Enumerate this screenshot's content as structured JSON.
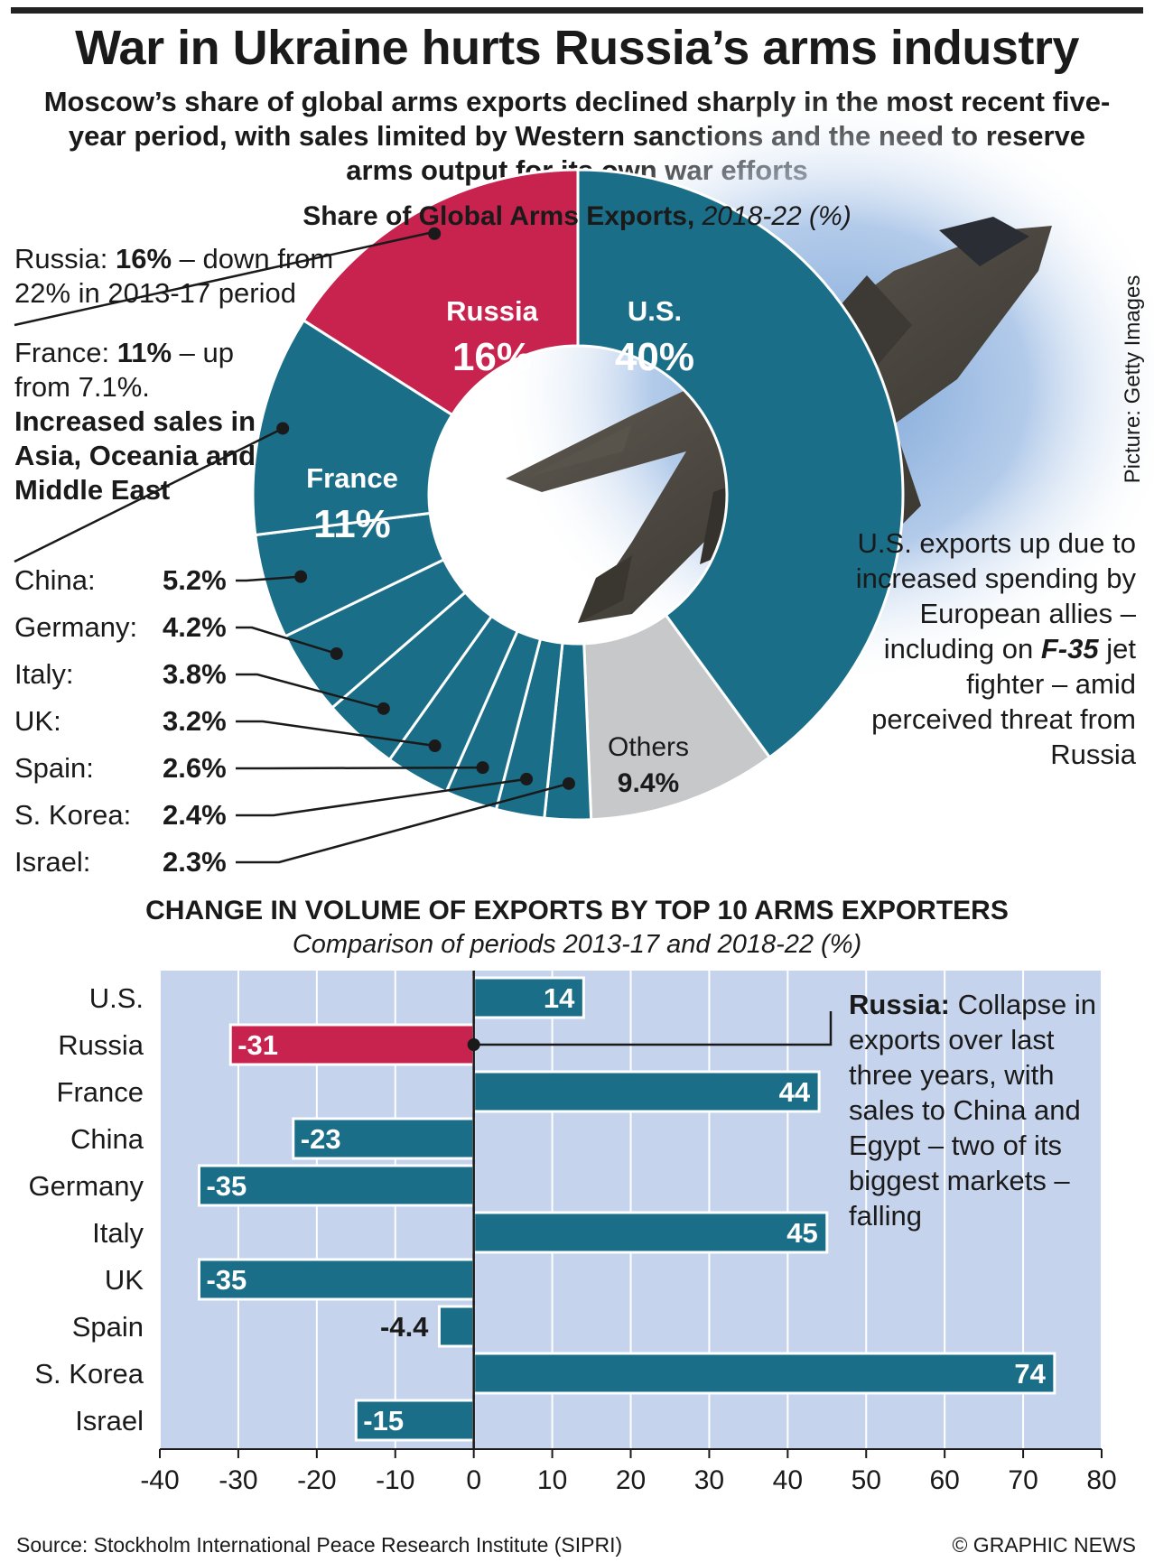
{
  "title": "War in Ukraine hurts Russia’s arms industry",
  "subtitle": "Moscow’s share of global arms exports declined sharply in the most recent five-year period, with sales limited by Western sanctions and the need to reserve arms output for its own war efforts",
  "picture_credit": "Picture: Getty Images",
  "share_section": {
    "title_bold": "Share of Global Arms Exports,",
    "title_italic": "2018-22 (%)"
  },
  "notes": {
    "russia_pre": "Russia: ",
    "russia_bold": "16%",
    "russia_post": " – down from 22% in 2013-17 period",
    "france_pre": "France: ",
    "france_bold": "11%",
    "france_post": " – up from 7.1%.",
    "france_bold2": "Increased sales in Asia, Oceania and Middle East",
    "us_text": "U.S. exports up due to increased spending by European allies – including on",
    "us_bold": "F-35",
    "us_text2": "jet fighter – amid perceived threat from Russia",
    "russia_bar_bold": "Russia:",
    "russia_bar_text": "Collapse in exports over last three years, with sales to China and Egypt – two of its biggest markets – falling"
  },
  "chart_data": [
    {
      "type": "pie",
      "title": "Share of Global Arms Exports, 2018-22 (%)",
      "slices": [
        {
          "label": "U.S.",
          "display": "U.S.",
          "value": 40,
          "value_label": "40%",
          "color": "#1b6e88"
        },
        {
          "label": "Others",
          "display": "Others",
          "value": 9.4,
          "value_label": "9.4%",
          "color": "#c7c8ca"
        },
        {
          "label": "Israel",
          "display": "Israel:",
          "value": 2.3,
          "value_label": "2.3%",
          "color": "#1b6e88"
        },
        {
          "label": "S. Korea",
          "display": "S. Korea:",
          "value": 2.4,
          "value_label": "2.4%",
          "color": "#1b6e88"
        },
        {
          "label": "Spain",
          "display": "Spain:",
          "value": 2.6,
          "value_label": "2.6%",
          "color": "#1b6e88"
        },
        {
          "label": "UK",
          "display": "UK:",
          "value": 3.2,
          "value_label": "3.2%",
          "color": "#1b6e88"
        },
        {
          "label": "Italy",
          "display": "Italy:",
          "value": 3.8,
          "value_label": "3.8%",
          "color": "#1b6e88"
        },
        {
          "label": "Germany",
          "display": "Germany:",
          "value": 4.2,
          "value_label": "4.2%",
          "color": "#1b6e88"
        },
        {
          "label": "China",
          "display": "China:",
          "value": 5.2,
          "value_label": "5.2%",
          "color": "#1b6e88"
        },
        {
          "label": "France",
          "display": "France",
          "value": 11,
          "value_label": "11%",
          "color": "#1b6e88"
        },
        {
          "label": "Russia",
          "display": "Russia",
          "value": 16,
          "value_label": "16%",
          "color": "#c8234f"
        }
      ]
    },
    {
      "type": "bar",
      "orientation": "horizontal",
      "title": "CHANGE IN VOLUME OF EXPORTS BY TOP 10 ARMS EXPORTERS",
      "subtitle": "Comparison of periods 2013-17 and 2018-22 (%)",
      "categories": [
        "U.S.",
        "Russia",
        "France",
        "China",
        "Germany",
        "Italy",
        "UK",
        "Spain",
        "S. Korea",
        "Israel"
      ],
      "values": [
        14,
        -31,
        44,
        -23,
        -35,
        45,
        -35,
        -4.4,
        74,
        -15
      ],
      "value_labels": [
        "14",
        "-31",
        "44",
        "-23",
        "-35",
        "45",
        "-35",
        "-4.4",
        "74",
        "-15"
      ],
      "xlim": [
        -40,
        80
      ],
      "xticks": [
        -40,
        -30,
        -20,
        -10,
        0,
        10,
        20,
        30,
        40,
        50,
        60,
        70,
        80
      ],
      "colors": {
        "default": "#1b6e88",
        "highlight": "#c8234f",
        "background": "#c5d3ec"
      },
      "highlight": "Russia"
    }
  ],
  "footer": {
    "source": "Source: Stockholm International Peace Research Institute (SIPRI)",
    "credit": "© GRAPHIC NEWS"
  }
}
